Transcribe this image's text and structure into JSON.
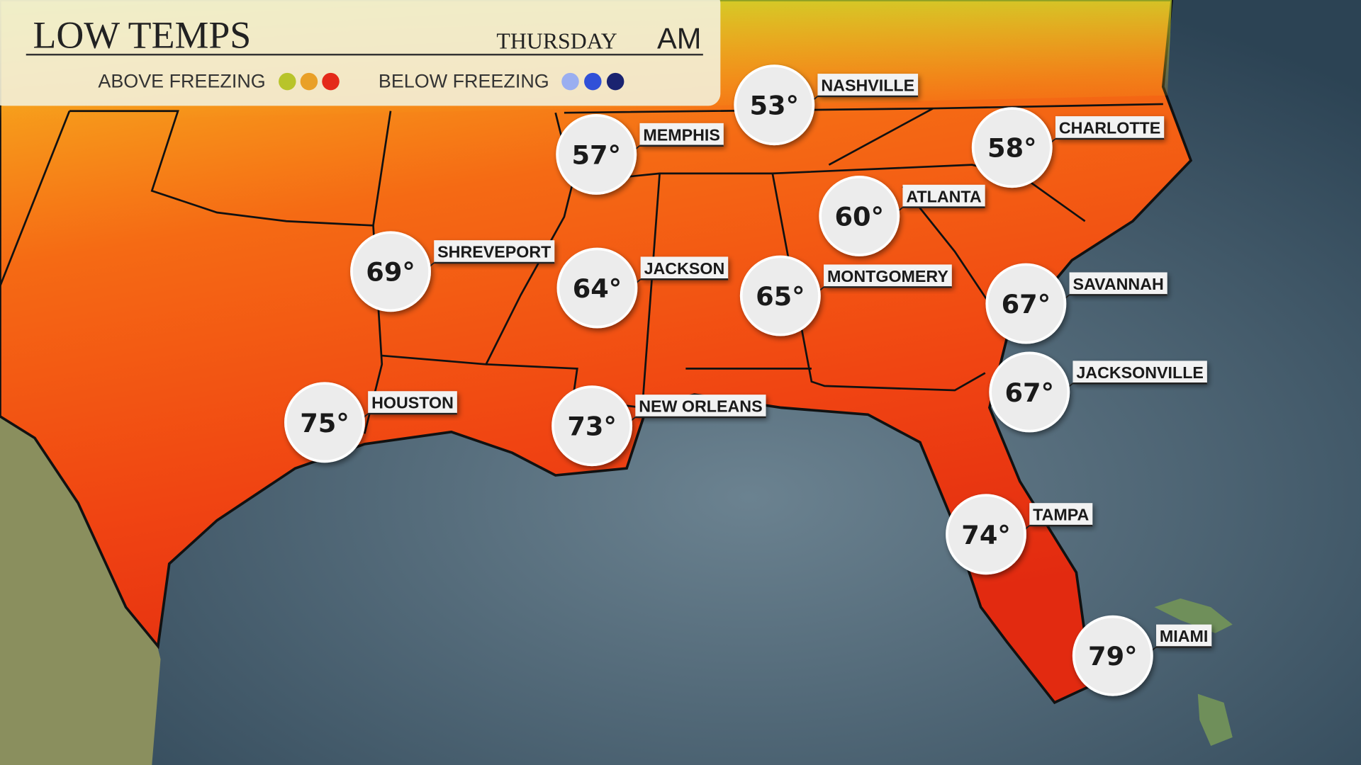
{
  "header": {
    "title": "LOW TEMPS",
    "day": "THURSDAY",
    "period": "AM"
  },
  "legend": {
    "above": "ABOVE FREEZING",
    "below": "BELOW FREEZING"
  },
  "cities": [
    {
      "name": "NASHVILLE",
      "temp": "53°"
    },
    {
      "name": "MEMPHIS",
      "temp": "57°"
    },
    {
      "name": "CHARLOTTE",
      "temp": "58°"
    },
    {
      "name": "ATLANTA",
      "temp": "60°"
    },
    {
      "name": "SHREVEPORT",
      "temp": "69°"
    },
    {
      "name": "JACKSON",
      "temp": "64°"
    },
    {
      "name": "MONTGOMERY",
      "temp": "65°"
    },
    {
      "name": "SAVANNAH",
      "temp": "67°"
    },
    {
      "name": "JACKSONVILLE",
      "temp": "67°"
    },
    {
      "name": "HOUSTON",
      "temp": "75°"
    },
    {
      "name": "NEW ORLEANS",
      "temp": "73°"
    },
    {
      "name": "TAMPA",
      "temp": "74°"
    },
    {
      "name": "MIAMI",
      "temp": "79°"
    }
  ]
}
